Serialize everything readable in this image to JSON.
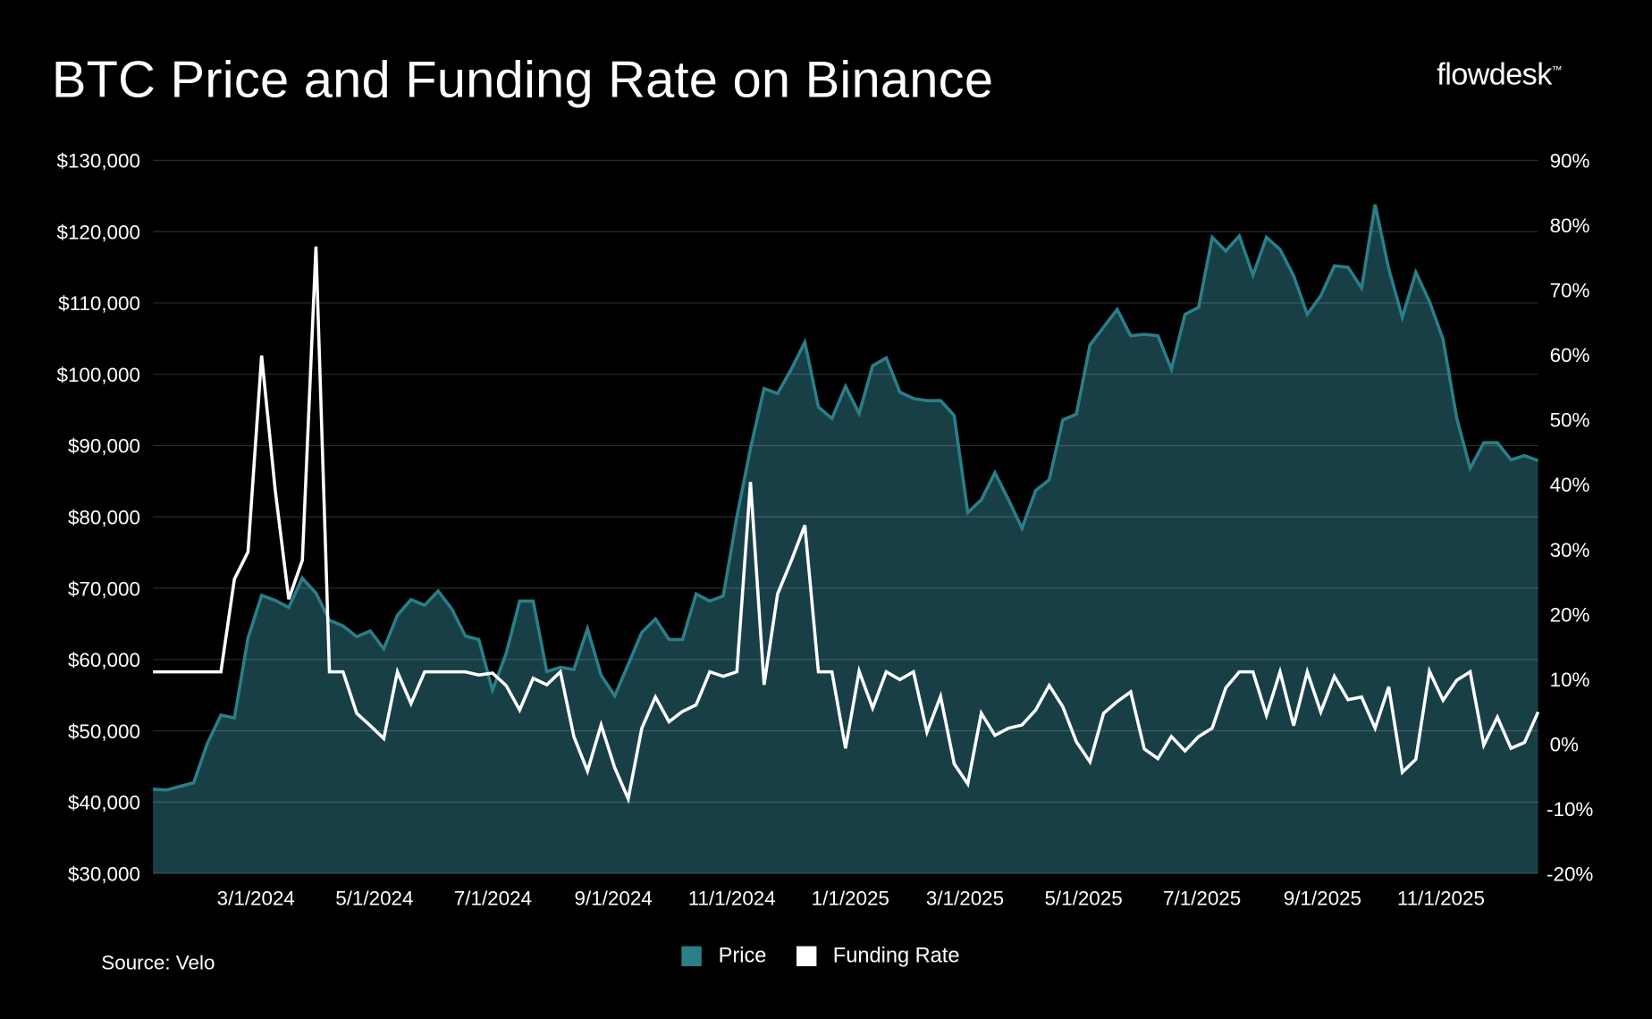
{
  "title": "BTC Price and Funding Rate on Binance",
  "logo": "flowdesk",
  "source": "Source: Velo",
  "colors": {
    "price_line": "#2a7f89",
    "price_fill": "#183f46",
    "funding": "#ffffff",
    "background": "#000000"
  },
  "chart_data": {
    "type": "area+line",
    "title": "BTC Price and Funding Rate on Binance",
    "x_start": "2024-01-08",
    "x_end": "2025-12-21",
    "x_ticks": [
      {
        "label": "3/1/2024",
        "date": "2024-03-01"
      },
      {
        "label": "5/1/2024",
        "date": "2024-05-01"
      },
      {
        "label": "7/1/2024",
        "date": "2024-07-01"
      },
      {
        "label": "9/1/2024",
        "date": "2024-09-01"
      },
      {
        "label": "11/1/2024",
        "date": "2024-11-01"
      },
      {
        "label": "1/1/2025",
        "date": "2025-01-01"
      },
      {
        "label": "3/1/2025",
        "date": "2025-03-01"
      },
      {
        "label": "5/1/2025",
        "date": "2025-05-01"
      },
      {
        "label": "7/1/2025",
        "date": "2025-07-01"
      },
      {
        "label": "9/1/2025",
        "date": "2025-09-01"
      },
      {
        "label": "11/1/2025",
        "date": "2025-11-01"
      }
    ],
    "y_left": {
      "min": 30000,
      "max": 130000,
      "step": 10000,
      "ticks": [
        "$30,000",
        "$40,000",
        "$50,000",
        "$60,000",
        "$70,000",
        "$80,000",
        "$90,000",
        "$100,000",
        "$110,000",
        "$120,000",
        "$130,000"
      ]
    },
    "y_right": {
      "min": -20,
      "max": 90,
      "step": 10,
      "ticks": [
        "-20%",
        "-10%",
        "0%",
        "10%",
        "20%",
        "30%",
        "40%",
        "50%",
        "60%",
        "70%",
        "80%",
        "90%"
      ]
    },
    "grid": true,
    "legend_position": "bottom-center",
    "series": [
      {
        "name": "Price",
        "axis": "left",
        "type": "area",
        "values": [
          41800,
          41700,
          42200,
          42700,
          48200,
          52200,
          51800,
          63000,
          69000,
          68300,
          67300,
          71400,
          69300,
          65500,
          64700,
          63200,
          64000,
          61500,
          66200,
          68400,
          67600,
          69600,
          67100,
          63300,
          62800,
          55700,
          60800,
          68200,
          68200,
          58300,
          58900,
          58600,
          64300,
          57800,
          54900,
          59300,
          63800,
          65700,
          62800,
          62800,
          69200,
          68200,
          68900,
          80000,
          89600,
          98000,
          97300,
          100700,
          104500,
          95400,
          93800,
          98300,
          94500,
          101200,
          102300,
          97500,
          96600,
          96300,
          96300,
          94200,
          80600,
          82400,
          86200,
          82400,
          78400,
          83700,
          85200,
          93600,
          94400,
          104100,
          106600,
          109100,
          105400,
          105600,
          105400,
          100700,
          108400,
          109400,
          119200,
          117300,
          119400,
          113900,
          119200,
          117500,
          113800,
          108400,
          111000,
          115200,
          115000,
          112100,
          123800,
          114800,
          108000,
          114300,
          110200,
          104900,
          93900,
          86800,
          90400,
          90400,
          88000,
          88600,
          87900
        ]
      },
      {
        "name": "Funding Rate",
        "axis": "right",
        "type": "line",
        "values": [
          11.1,
          11.1,
          11.1,
          11.1,
          11.1,
          11.1,
          25.4,
          29.6,
          59.9,
          39.1,
          22.3,
          28.3,
          76.7,
          11.1,
          11.1,
          4.7,
          2.8,
          0.8,
          11.1,
          6.2,
          11.1,
          11.1,
          11.1,
          11.1,
          10.6,
          10.9,
          9.0,
          5.2,
          10.1,
          9.1,
          11.1,
          1.1,
          -4.2,
          2.9,
          -3.7,
          -8.5,
          2.4,
          7.2,
          3.4,
          5.0,
          6.0,
          11.1,
          10.4,
          11.1,
          40.4,
          9.1,
          23.1,
          28.2,
          33.7,
          11.1,
          11.1,
          -0.7,
          11.2,
          5.5,
          11.1,
          9.9,
          11.1,
          1.8,
          7.3,
          -3.1,
          -6.2,
          4.7,
          1.3,
          2.4,
          2.9,
          5.2,
          9.0,
          5.7,
          0.3,
          -2.8,
          4.7,
          6.5,
          8.0,
          -0.8,
          -2.3,
          1.1,
          -1.1,
          1.1,
          2.4,
          8.6,
          11.1,
          11.1,
          4.4,
          11.1,
          2.8,
          11.1,
          4.9,
          10.4,
          6.8,
          7.2,
          2.4,
          8.8,
          -4.4,
          -2.4,
          11.2,
          6.7,
          9.8,
          11.1,
          -0.2,
          4.1,
          -0.7,
          0.2,
          4.9
        ]
      }
    ]
  }
}
